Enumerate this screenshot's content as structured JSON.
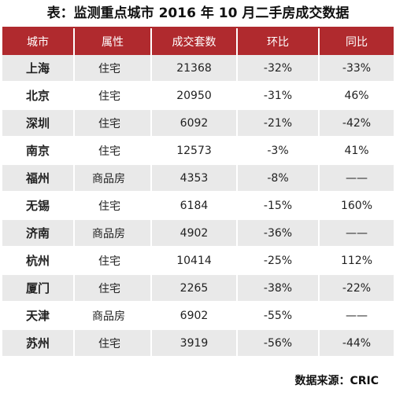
{
  "title": "表：监测重点城市 2016 年 10 月二手房成交数据",
  "headers": [
    "城市",
    "属性",
    "成交套数",
    "环比",
    "同比"
  ],
  "rows": [
    {
      "city": "上海",
      "attr": "住宅",
      "volume": "21368",
      "mom": "-32%",
      "yoy": "-33%"
    },
    {
      "city": "北京",
      "attr": "住宅",
      "volume": "20950",
      "mom": "-31%",
      "yoy": "46%"
    },
    {
      "city": "深圳",
      "attr": "住宅",
      "volume": "6092",
      "mom": "-21%",
      "yoy": "-42%"
    },
    {
      "city": "南京",
      "attr": "住宅",
      "volume": "12573",
      "mom": "-3%",
      "yoy": "41%"
    },
    {
      "city": "福州",
      "attr": "商品房",
      "volume": "4353",
      "mom": "-8%",
      "yoy": "——"
    },
    {
      "city": "无锡",
      "attr": "住宅",
      "volume": "6184",
      "mom": "-15%",
      "yoy": "160%"
    },
    {
      "city": "济南",
      "attr": "商品房",
      "volume": "4902",
      "mom": "-36%",
      "yoy": "——"
    },
    {
      "city": "杭州",
      "attr": "住宅",
      "volume": "10414",
      "mom": "-25%",
      "yoy": "112%"
    },
    {
      "city": "厦门",
      "attr": "住宅",
      "volume": "2265",
      "mom": "-38%",
      "yoy": "-22%"
    },
    {
      "city": "天津",
      "attr": "商品房",
      "volume": "6902",
      "mom": "-55%",
      "yoy": "——"
    },
    {
      "city": "苏州",
      "attr": "住宅",
      "volume": "3919",
      "mom": "-56%",
      "yoy": "-44%"
    }
  ],
  "source": "数据来源：CRIC",
  "colors": {
    "header_bg": "#b02a2e",
    "stripe": "#e9e9e9"
  }
}
